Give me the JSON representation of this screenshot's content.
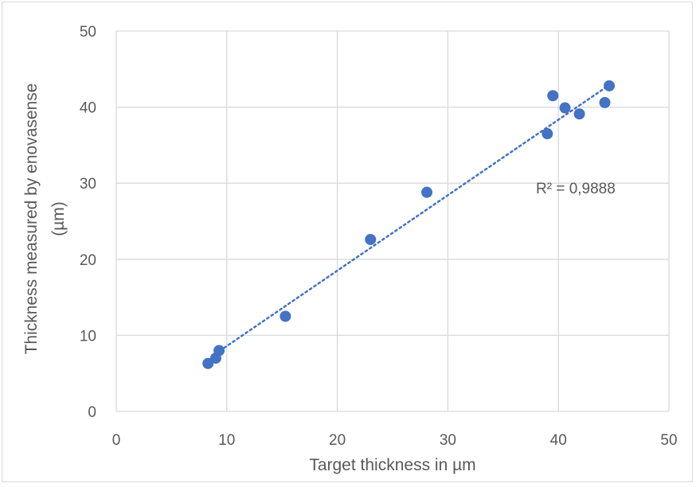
{
  "chart_data": {
    "type": "scatter",
    "title": "",
    "xlabel": "Target thickness in µm",
    "ylabel_lines": [
      "Thickness measured by enovasense",
      "(µm)"
    ],
    "xlim": [
      0,
      50
    ],
    "ylim": [
      0,
      50
    ],
    "x_ticks": [
      "0",
      "10",
      "20",
      "30",
      "40",
      "50"
    ],
    "y_ticks": [
      "0",
      "10",
      "20",
      "30",
      "40",
      "50"
    ],
    "grid": true,
    "legend": "none",
    "series": [
      {
        "points": [
          {
            "x": 8.3,
            "y": 6.3
          },
          {
            "x": 9.0,
            "y": 7.0
          },
          {
            "x": 9.3,
            "y": 8.0
          },
          {
            "x": 15.3,
            "y": 12.5
          },
          {
            "x": 23.0,
            "y": 22.6
          },
          {
            "x": 28.1,
            "y": 28.8
          },
          {
            "x": 39.0,
            "y": 36.5
          },
          {
            "x": 39.5,
            "y": 41.5
          },
          {
            "x": 40.6,
            "y": 39.9
          },
          {
            "x": 41.9,
            "y": 39.1
          },
          {
            "x": 44.2,
            "y": 40.6
          },
          {
            "x": 44.6,
            "y": 42.8
          }
        ]
      }
    ],
    "trendline": {
      "type": "linear",
      "style": "dotted",
      "from": {
        "x": 9.0,
        "y": 7.6
      },
      "to": {
        "x": 44.6,
        "y": 42.9
      }
    },
    "annotation": "R² = 0,9888",
    "colors": {
      "points": "#4472c4",
      "trendline": "#4472c4",
      "grid": "#d9d9d9",
      "text": "#595959"
    }
  }
}
